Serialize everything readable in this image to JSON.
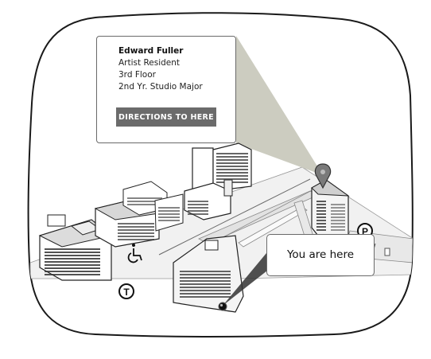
{
  "destination_callout": {
    "name": "Edward Fuller",
    "lines": [
      "Artist Resident",
      "3rd Floor",
      "2nd Yr. Studio Major"
    ],
    "directions_button_label": "DIRECTIONS TO HERE"
  },
  "current_location_callout": {
    "label": "You are here"
  },
  "map_symbols": {
    "parking_letter": "P",
    "transit_letter": "T",
    "accessible_icon": "wheelchair-icon",
    "destination_icon": "map-pin-icon",
    "current_location_icon": "location-dot-icon"
  },
  "colors": {
    "button": "#6b6b6b",
    "highlight_beam": "#c9c9bd",
    "map_frame_stroke": "#1a1a1a"
  }
}
